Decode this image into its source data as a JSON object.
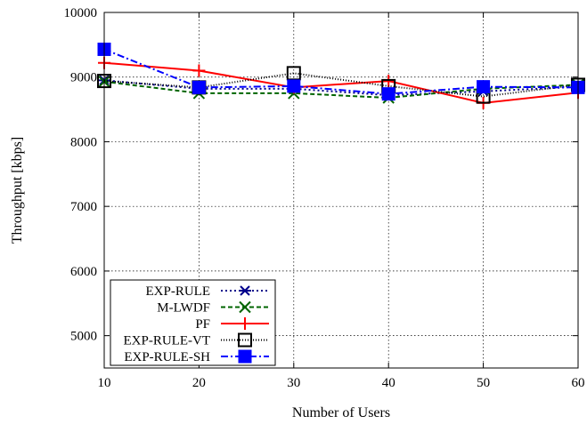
{
  "chart_data": {
    "type": "line",
    "xlabel": "Number of Users",
    "ylabel": "Throughput [kbps]",
    "xlim": [
      10,
      60
    ],
    "ylim": [
      4500,
      10000
    ],
    "xticks": [
      10,
      20,
      30,
      40,
      50,
      60
    ],
    "yticks": [
      5000,
      6000,
      7000,
      8000,
      9000,
      10000
    ],
    "grid": true,
    "legend_position": "bottom-left",
    "x": [
      10,
      20,
      30,
      40,
      50,
      60
    ],
    "series": [
      {
        "name": "EXP-RULE",
        "values": [
          8950,
          8820,
          8820,
          8720,
          8780,
          8850
        ],
        "color": "#00008b",
        "dash": "dotted",
        "marker": "asterisk"
      },
      {
        "name": "M-LWDF",
        "values": [
          8930,
          8750,
          8750,
          8680,
          8820,
          8880
        ],
        "color": "#006400",
        "dash": "dashed",
        "marker": "x"
      },
      {
        "name": "PF",
        "values": [
          9220,
          9100,
          8840,
          8940,
          8600,
          8760
        ],
        "color": "#ff0000",
        "dash": "solid",
        "marker": "plus"
      },
      {
        "name": "EXP-RULE-VT",
        "values": [
          8940,
          8840,
          9060,
          8860,
          8700,
          8880
        ],
        "color": "#000000",
        "dash": "fine-dotted",
        "marker": "open-square"
      },
      {
        "name": "EXP-RULE-SH",
        "values": [
          9430,
          8840,
          8860,
          8740,
          8850,
          8840
        ],
        "color": "#0000ff",
        "dash": "dash-dot",
        "marker": "filled-square"
      }
    ]
  }
}
